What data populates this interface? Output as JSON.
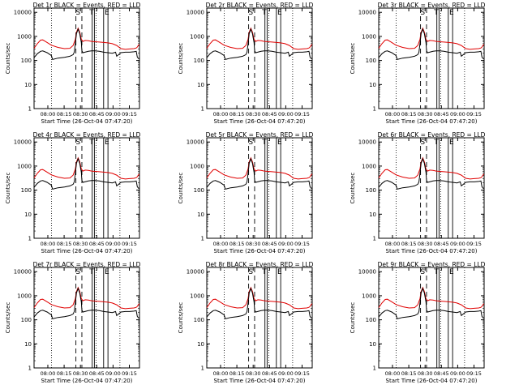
{
  "panel_titles": [
    "Det 1r  BLACK = Events, RED = LLD",
    "Det 2r  BLACK = Events, RED = LLD",
    "Det 3r  BLACK = Events, RED = LLD",
    "Det 4r  BLACK = Events, RED = LLD",
    "Det 5r  BLACK = Events, RED = LLD",
    "Det 6r  BLACK = Events, RED = LLD",
    "Det 7r  BLACK = Events, RED = LLD",
    "Det 8r  BLACK = Events, RED = LLD",
    "Det 9r  BLACK = Events, RED = LLD"
  ],
  "ylabel": "Counts/sec",
  "xlabel": "Start Time (26-Oct-04 07:47:20)",
  "x_tick_labels": [
    "08:00",
    "08:15",
    "08:30",
    "08:45",
    "09:00",
    "09:15"
  ],
  "y_tick_labels": [
    "1",
    "10",
    "100",
    "1000",
    "10000"
  ],
  "markers": [
    "S",
    "T",
    "E"
  ],
  "colors": {
    "events": "#000000",
    "lld": "#e00000"
  },
  "chart_data": {
    "type": "line",
    "layout": "3x3 grid of identical-format panels",
    "x_unit": "minutes after 07:47:20",
    "xlim": [
      0,
      97
    ],
    "ylim": [
      1,
      15000
    ],
    "y_scale": "log",
    "x_ticks_minutes": [
      12.67,
      27.67,
      42.67,
      57.67,
      72.67,
      87.67
    ],
    "y_ticks": [
      1,
      10,
      100,
      1000,
      10000
    ],
    "grid": false,
    "legend": "in titles",
    "vertical_lines": {
      "dotted": [
        16,
        57,
        79
      ],
      "dashed": [
        38.5,
        44
      ],
      "solid": [
        53.5,
        55.5,
        64,
        68
      ]
    },
    "series": [
      {
        "name": "LLD",
        "color": "red",
        "x": [
          0,
          3,
          6,
          8,
          12,
          16,
          22,
          28,
          33,
          36,
          38,
          39,
          40.5,
          42,
          43.5,
          45,
          47,
          50,
          53,
          56,
          60,
          64,
          68,
          72,
          76,
          80,
          84,
          88,
          92,
          94,
          95,
          96,
          97
        ],
        "y": [
          320,
          500,
          700,
          720,
          560,
          430,
          350,
          310,
          320,
          420,
          750,
          1500,
          2200,
          1500,
          760,
          620,
          680,
          660,
          620,
          600,
          580,
          560,
          540,
          500,
          420,
          310,
          290,
          300,
          310,
          330,
          360,
          430,
          470
        ]
      },
      {
        "name": "Events",
        "color": "black",
        "x": [
          0,
          3,
          6,
          8,
          12,
          16,
          17,
          22,
          28,
          33,
          36,
          37,
          38,
          39,
          40.5,
          42,
          43.5,
          44,
          45,
          50,
          53,
          56,
          60,
          64,
          68,
          72,
          75,
          76,
          80,
          84,
          88,
          92,
          94,
          95,
          96,
          97
        ],
        "y": [
          130,
          190,
          240,
          250,
          210,
          160,
          110,
          125,
          135,
          150,
          175,
          220,
          500,
          1300,
          2000,
          1300,
          550,
          250,
          210,
          240,
          250,
          250,
          240,
          220,
          210,
          200,
          220,
          150,
          210,
          220,
          220,
          230,
          240,
          140,
          120,
          120
        ]
      }
    ]
  }
}
